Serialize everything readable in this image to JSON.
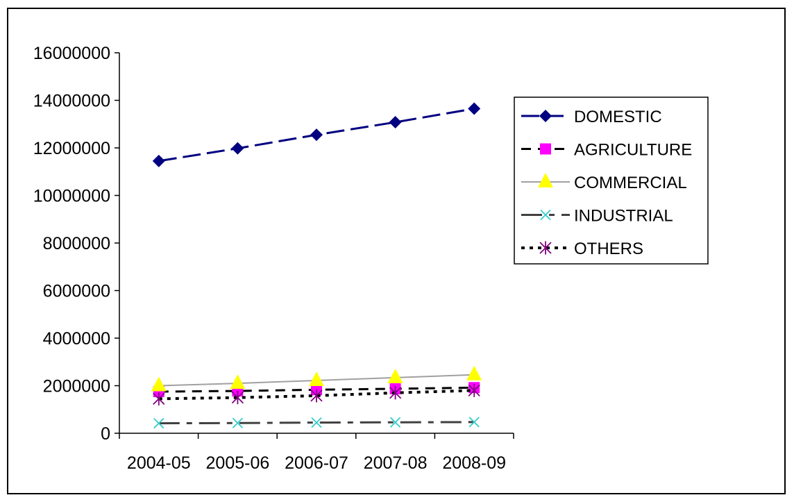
{
  "chart_data": {
    "type": "line",
    "categories": [
      "2004-05",
      "2005-06",
      "2006-07",
      "2007-08",
      "2008-09"
    ],
    "y_ticks": [
      "0",
      "2000000",
      "4000000",
      "6000000",
      "8000000",
      "10000000",
      "12000000",
      "14000000",
      "16000000"
    ],
    "ylim": [
      0,
      16000000
    ],
    "grid": false,
    "legend_position": "right",
    "series": [
      {
        "name": "DOMESTIC",
        "values": [
          11450000,
          11980000,
          12550000,
          13080000,
          13650000
        ],
        "color": "#000080",
        "marker": "diamond",
        "line": "long-dash"
      },
      {
        "name": "AGRICULTURE",
        "values": [
          1750000,
          1780000,
          1830000,
          1870000,
          1920000
        ],
        "color": "#ff00ff",
        "line_color": "#000000",
        "marker": "square",
        "line": "dash"
      },
      {
        "name": "COMMERCIAL",
        "values": [
          2000000,
          2100000,
          2220000,
          2340000,
          2460000
        ],
        "color": "#ffff00",
        "line_color": "#a0a0a0",
        "marker": "triangle",
        "line": "solid-thin"
      },
      {
        "name": "INDUSTRIAL",
        "values": [
          420000,
          430000,
          450000,
          460000,
          470000
        ],
        "color": "#33cccc",
        "line_color": "#404040",
        "marker": "x",
        "line": "dash-dot"
      },
      {
        "name": "OTHERS",
        "values": [
          1450000,
          1500000,
          1580000,
          1700000,
          1800000
        ],
        "color": "#800080",
        "line_color": "#000000",
        "marker": "star",
        "line": "dot"
      }
    ]
  }
}
